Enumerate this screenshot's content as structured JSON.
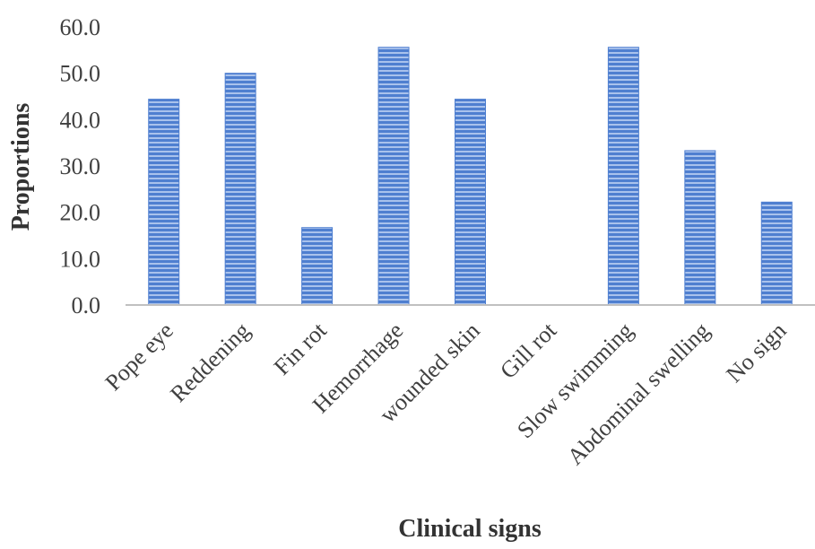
{
  "chart_data": {
    "type": "bar",
    "title": "",
    "xlabel": "Clinical signs",
    "ylabel": "Proportions",
    "categories": [
      "Pope eye",
      "Reddening",
      "Fin rot",
      "Hemorrhage",
      "wounded skin",
      "Gill rot",
      "Slow swimming",
      "Abdominal swelling",
      "No sign"
    ],
    "values": [
      44.4,
      50.0,
      16.7,
      55.6,
      44.4,
      0.0,
      55.6,
      33.3,
      22.2
    ],
    "ylim": [
      0,
      60
    ],
    "yticks": [
      "0.0",
      "10.0",
      "20.0",
      "30.0",
      "40.0",
      "50.0",
      "60.0"
    ],
    "grid": false,
    "legend": "none",
    "colors": {
      "bar": "#4f7fd0",
      "bar_stripe": "#a9c2ec",
      "axis": "#c0c0c0",
      "text": "#404040"
    }
  }
}
